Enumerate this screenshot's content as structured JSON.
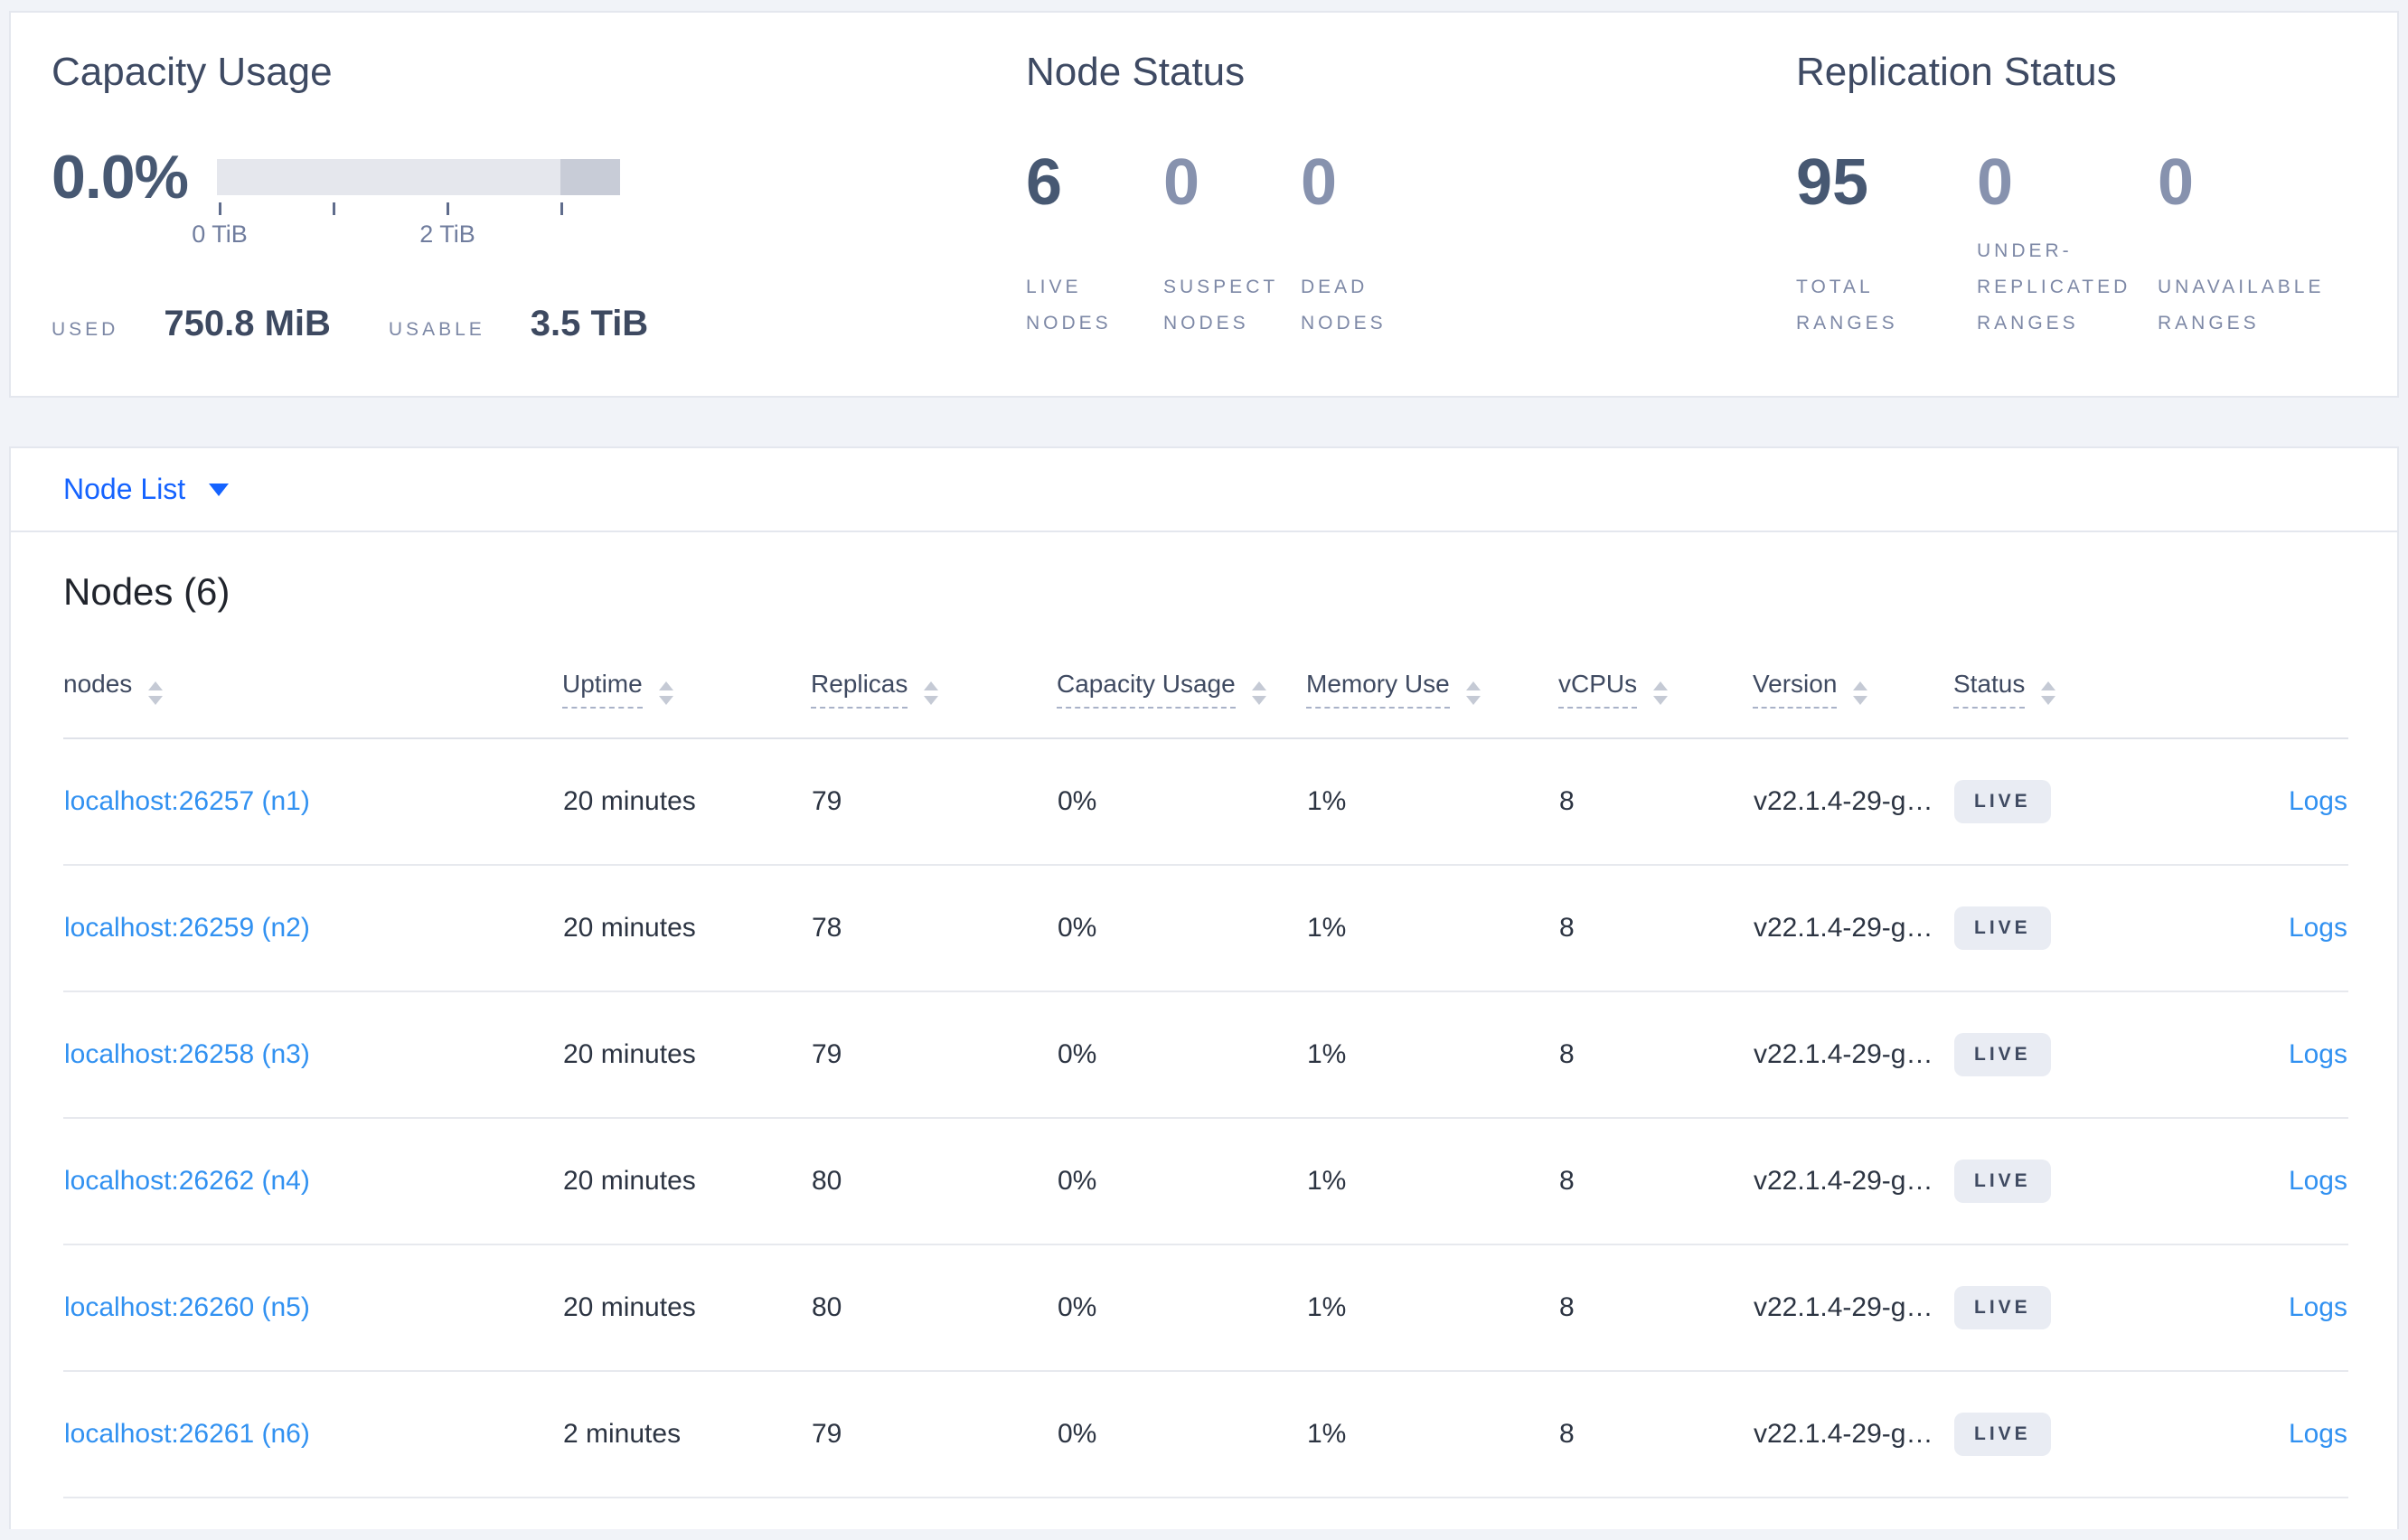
{
  "summary": {
    "capacity": {
      "title": "Capacity Usage",
      "percent": "0.0%",
      "axis_ticks": [
        "0 TiB",
        "2 TiB"
      ],
      "used_label": "USED",
      "used_value": "750.8 MiB",
      "usable_label": "USABLE",
      "usable_value": "3.5 TiB"
    },
    "node_status": {
      "title": "Node Status",
      "stats": [
        {
          "value": "6",
          "label": "LIVE NODES"
        },
        {
          "value": "0",
          "label": "SUSPECT NODES"
        },
        {
          "value": "0",
          "label": "DEAD NODES"
        }
      ]
    },
    "replication_status": {
      "title": "Replication Status",
      "stats": [
        {
          "value": "95",
          "label": "TOTAL RANGES"
        },
        {
          "value": "0",
          "label": "UNDER-REPLICATED RANGES"
        },
        {
          "value": "0",
          "label": "UNAVAILABLE RANGES"
        }
      ]
    }
  },
  "view_selector": {
    "label": "Node List"
  },
  "nodes_table": {
    "title": "Nodes (6)",
    "logs_label": "Logs",
    "columns": [
      {
        "label": "nodes",
        "underline": false,
        "sortable": true
      },
      {
        "label": "Uptime",
        "underline": true,
        "sortable": true
      },
      {
        "label": "Replicas",
        "underline": true,
        "sortable": true
      },
      {
        "label": "Capacity Usage",
        "underline": true,
        "sortable": true
      },
      {
        "label": "Memory Use",
        "underline": true,
        "sortable": true
      },
      {
        "label": "vCPUs",
        "underline": true,
        "sortable": true
      },
      {
        "label": "Version",
        "underline": true,
        "sortable": true
      },
      {
        "label": "Status",
        "underline": true,
        "sortable": true
      },
      {
        "label": "",
        "underline": false,
        "sortable": false
      }
    ],
    "rows": [
      {
        "address": "localhost:26257 (n1)",
        "uptime": "20 minutes",
        "replicas": "79",
        "capacity_usage": "0%",
        "memory_use": "1%",
        "vcpus": "8",
        "version": "v22.1.4-29-g…",
        "status": "LIVE"
      },
      {
        "address": "localhost:26259 (n2)",
        "uptime": "20 minutes",
        "replicas": "78",
        "capacity_usage": "0%",
        "memory_use": "1%",
        "vcpus": "8",
        "version": "v22.1.4-29-g…",
        "status": "LIVE"
      },
      {
        "address": "localhost:26258 (n3)",
        "uptime": "20 minutes",
        "replicas": "79",
        "capacity_usage": "0%",
        "memory_use": "1%",
        "vcpus": "8",
        "version": "v22.1.4-29-g…",
        "status": "LIVE"
      },
      {
        "address": "localhost:26262 (n4)",
        "uptime": "20 minutes",
        "replicas": "80",
        "capacity_usage": "0%",
        "memory_use": "1%",
        "vcpus": "8",
        "version": "v22.1.4-29-g…",
        "status": "LIVE"
      },
      {
        "address": "localhost:26260 (n5)",
        "uptime": "20 minutes",
        "replicas": "80",
        "capacity_usage": "0%",
        "memory_use": "1%",
        "vcpus": "8",
        "version": "v22.1.4-29-g…",
        "status": "LIVE"
      },
      {
        "address": "localhost:26261 (n6)",
        "uptime": "2 minutes",
        "replicas": "79",
        "capacity_usage": "0%",
        "memory_use": "1%",
        "vcpus": "8",
        "version": "v22.1.4-29-g…",
        "status": "LIVE"
      }
    ]
  },
  "colors": {
    "accent_blue": "#1563ff",
    "link_blue": "#3191f1",
    "heading_slate": "#3e4a63",
    "muted_label": "#7d88a6",
    "badge_bg": "#e9ecf3",
    "meter_track": "#e5e7ed",
    "meter_dark_segment": "#c8ccd7"
  }
}
